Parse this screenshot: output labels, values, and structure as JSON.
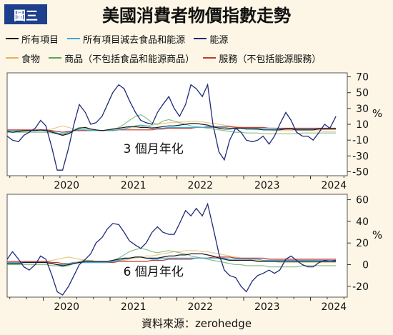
{
  "badge": "圖三",
  "title": "美國消費者物價指數走勢",
  "source": "資料來源：zerohedge",
  "legend": [
    {
      "label": "所有項目",
      "color": "#1a1a1a"
    },
    {
      "label": "所有項目減去食品和能源",
      "color": "#3aa8d8"
    },
    {
      "label": "能源",
      "color": "#1f2a7a"
    },
    {
      "label": "食物",
      "color": "#e0b35c"
    },
    {
      "label": "商品（不包括食品和能源商品）",
      "color": "#5aa35a"
    },
    {
      "label": "服務（不包括能源服務）",
      "color": "#c0392b"
    }
  ],
  "chart_data": [
    {
      "type": "line",
      "annotation": "3 個月年化",
      "ylabel": "%",
      "ylim": [
        -55,
        75
      ],
      "yticks": [
        70,
        50,
        30,
        10,
        -10,
        -30,
        -50
      ],
      "xticks": [
        "2020",
        "2021",
        "2022",
        "2023",
        "2024"
      ],
      "x": [
        2019.46,
        2019.54,
        2019.63,
        2019.71,
        2019.79,
        2019.88,
        2019.96,
        2020.04,
        2020.13,
        2020.21,
        2020.29,
        2020.38,
        2020.46,
        2020.54,
        2020.63,
        2020.71,
        2020.79,
        2020.88,
        2020.96,
        2021.04,
        2021.13,
        2021.21,
        2021.29,
        2021.38,
        2021.46,
        2021.54,
        2021.63,
        2021.71,
        2021.79,
        2021.88,
        2021.96,
        2022.04,
        2022.13,
        2022.21,
        2022.29,
        2022.38,
        2022.46,
        2022.54,
        2022.63,
        2022.71,
        2022.79,
        2022.88,
        2022.96,
        2023.04,
        2023.13,
        2023.21,
        2023.29,
        2023.38,
        2023.46,
        2023.54,
        2023.63,
        2023.71,
        2023.79,
        2023.88,
        2023.96,
        2024.04,
        2024.13,
        2024.21,
        2024.29,
        2024.38
      ],
      "series": [
        {
          "name": "所有項目",
          "values": [
            1,
            0,
            1,
            2,
            2,
            2,
            3,
            2,
            0,
            -2,
            -4,
            -2,
            2,
            5,
            6,
            4,
            3,
            2,
            3,
            4,
            5,
            6,
            7,
            7,
            6,
            6,
            5,
            6,
            7,
            8,
            8,
            9,
            10,
            11,
            11,
            10,
            9,
            7,
            5,
            4,
            4,
            5,
            5,
            4,
            4,
            4,
            3,
            3,
            3,
            3,
            4,
            4,
            3,
            3,
            3,
            3,
            4,
            4,
            4,
            4
          ]
        },
        {
          "name": "所有項目減去食品和能源",
          "values": [
            2,
            2,
            2,
            2,
            2,
            2,
            2,
            2,
            1,
            -1,
            -2,
            0,
            2,
            3,
            3,
            2,
            2,
            2,
            2,
            2,
            3,
            4,
            6,
            8,
            9,
            8,
            6,
            5,
            5,
            6,
            6,
            6,
            6,
            6,
            6,
            6,
            6,
            6,
            6,
            6,
            5,
            5,
            5,
            5,
            5,
            5,
            5,
            5,
            5,
            4,
            4,
            4,
            4,
            4,
            4,
            4,
            4,
            4,
            4,
            4
          ]
        },
        {
          "name": "能源",
          "values": [
            -5,
            -10,
            -12,
            -4,
            0,
            5,
            15,
            8,
            -20,
            -48,
            -48,
            -20,
            10,
            35,
            25,
            10,
            12,
            20,
            35,
            50,
            60,
            55,
            40,
            25,
            15,
            12,
            10,
            25,
            35,
            45,
            30,
            20,
            35,
            60,
            55,
            45,
            60,
            10,
            -25,
            -35,
            -10,
            5,
            0,
            -10,
            -12,
            -10,
            -5,
            -15,
            -5,
            10,
            25,
            15,
            0,
            -5,
            -5,
            -10,
            0,
            10,
            5,
            20
          ]
        },
        {
          "name": "食物",
          "values": [
            2,
            2,
            1,
            1,
            2,
            2,
            3,
            3,
            4,
            6,
            8,
            6,
            4,
            3,
            3,
            2,
            2,
            2,
            3,
            3,
            4,
            4,
            5,
            6,
            7,
            8,
            9,
            10,
            11,
            12,
            12,
            13,
            13,
            14,
            14,
            13,
            12,
            11,
            10,
            9,
            8,
            7,
            6,
            5,
            4,
            3,
            3,
            3,
            2,
            2,
            2,
            2,
            2,
            2,
            2,
            2,
            2,
            1,
            1,
            1
          ]
        },
        {
          "name": "商品（不包括食品和能源商品）",
          "values": [
            0,
            0,
            0,
            0,
            0,
            0,
            0,
            0,
            -1,
            -2,
            -3,
            -1,
            3,
            6,
            5,
            3,
            2,
            2,
            2,
            3,
            6,
            10,
            15,
            20,
            22,
            18,
            12,
            10,
            14,
            16,
            14,
            12,
            10,
            8,
            7,
            6,
            5,
            4,
            3,
            2,
            1,
            0,
            0,
            -1,
            -1,
            -1,
            -2,
            -2,
            -2,
            -2,
            -2,
            -2,
            -2,
            -1,
            -1,
            -1,
            -1,
            -1,
            -1,
            -1
          ]
        },
        {
          "name": "服務（不包括能源服務）",
          "values": [
            3,
            3,
            3,
            3,
            3,
            3,
            3,
            3,
            2,
            1,
            0,
            1,
            2,
            2,
            2,
            2,
            2,
            2,
            2,
            2,
            3,
            3,
            3,
            3,
            3,
            3,
            3,
            4,
            4,
            5,
            5,
            5,
            5,
            5,
            6,
            6,
            7,
            7,
            7,
            7,
            7,
            6,
            6,
            6,
            6,
            6,
            6,
            5,
            5,
            5,
            5,
            5,
            5,
            5,
            5,
            5,
            5,
            5,
            5,
            5
          ]
        }
      ]
    },
    {
      "type": "line",
      "annotation": "6 個月年化",
      "ylabel": "%",
      "ylim": [
        -30,
        65
      ],
      "yticks": [
        60,
        40,
        20,
        0,
        -20
      ],
      "xticks": [
        "2020",
        "2021",
        "2022",
        "2023",
        "2024"
      ],
      "x": [
        2019.46,
        2019.54,
        2019.63,
        2019.71,
        2019.79,
        2019.88,
        2019.96,
        2020.04,
        2020.13,
        2020.21,
        2020.29,
        2020.38,
        2020.46,
        2020.54,
        2020.63,
        2020.71,
        2020.79,
        2020.88,
        2020.96,
        2021.04,
        2021.13,
        2021.21,
        2021.29,
        2021.38,
        2021.46,
        2021.54,
        2021.63,
        2021.71,
        2021.79,
        2021.88,
        2021.96,
        2022.04,
        2022.13,
        2022.21,
        2022.29,
        2022.38,
        2022.46,
        2022.54,
        2022.63,
        2022.71,
        2022.79,
        2022.88,
        2022.96,
        2023.04,
        2023.13,
        2023.21,
        2023.29,
        2023.38,
        2023.46,
        2023.54,
        2023.63,
        2023.71,
        2023.79,
        2023.88,
        2023.96,
        2024.04,
        2024.13,
        2024.21,
        2024.29,
        2024.38
      ],
      "series": [
        {
          "name": "所有項目",
          "values": [
            1,
            1,
            1,
            2,
            2,
            2,
            2,
            2,
            1,
            0,
            -1,
            0,
            1,
            2,
            3,
            3,
            3,
            3,
            3,
            4,
            5,
            6,
            6,
            7,
            7,
            6,
            6,
            6,
            7,
            8,
            8,
            9,
            9,
            10,
            10,
            10,
            9,
            8,
            6,
            5,
            4,
            4,
            4,
            4,
            4,
            3,
            3,
            3,
            3,
            3,
            3,
            3,
            3,
            3,
            3,
            3,
            3,
            3,
            3,
            3
          ]
        },
        {
          "name": "所有項目減去食品和能源",
          "values": [
            2,
            2,
            2,
            2,
            2,
            2,
            2,
            2,
            1,
            0,
            0,
            1,
            2,
            2,
            2,
            2,
            2,
            2,
            2,
            3,
            4,
            5,
            6,
            7,
            7,
            6,
            5,
            5,
            6,
            6,
            6,
            6,
            6,
            6,
            6,
            6,
            6,
            6,
            6,
            6,
            5,
            5,
            5,
            5,
            5,
            5,
            4,
            4,
            4,
            4,
            4,
            4,
            4,
            4,
            4,
            4,
            4,
            4,
            4,
            4
          ]
        },
        {
          "name": "能源",
          "values": [
            5,
            12,
            5,
            -2,
            -5,
            0,
            8,
            5,
            -10,
            -25,
            -28,
            -20,
            -10,
            0,
            5,
            10,
            20,
            25,
            33,
            38,
            37,
            30,
            22,
            18,
            15,
            20,
            30,
            35,
            30,
            28,
            28,
            38,
            50,
            45,
            52,
            45,
            56,
            35,
            10,
            -5,
            -10,
            -12,
            -20,
            -25,
            -15,
            -10,
            -8,
            -5,
            -8,
            -5,
            5,
            8,
            4,
            0,
            -2,
            -2,
            2,
            4,
            3,
            4
          ]
        },
        {
          "name": "食物",
          "values": [
            1,
            1,
            1,
            2,
            2,
            2,
            2,
            3,
            4,
            5,
            6,
            7,
            6,
            5,
            4,
            3,
            3,
            3,
            3,
            3,
            4,
            4,
            5,
            6,
            7,
            8,
            8,
            9,
            10,
            11,
            12,
            12,
            13,
            13,
            13,
            12,
            12,
            11,
            10,
            9,
            8,
            7,
            6,
            5,
            4,
            4,
            3,
            3,
            3,
            2,
            2,
            2,
            2,
            2,
            2,
            2,
            2,
            2,
            2,
            2
          ]
        },
        {
          "name": "商品（不包括食品和能源商品）",
          "values": [
            0,
            0,
            0,
            0,
            0,
            0,
            0,
            0,
            -1,
            -1,
            -2,
            -1,
            1,
            3,
            4,
            4,
            3,
            3,
            3,
            4,
            6,
            9,
            12,
            14,
            15,
            14,
            12,
            11,
            12,
            13,
            12,
            11,
            10,
            8,
            7,
            6,
            5,
            4,
            3,
            2,
            1,
            0,
            0,
            -1,
            -1,
            -1,
            -1,
            -2,
            -2,
            -2,
            -2,
            -2,
            -2,
            -1,
            -1,
            -1,
            -1,
            -1,
            -1,
            -1
          ]
        },
        {
          "name": "服務（不包括能源服務）",
          "values": [
            3,
            3,
            3,
            3,
            3,
            3,
            3,
            3,
            2,
            2,
            1,
            1,
            2,
            2,
            2,
            2,
            2,
            2,
            2,
            2,
            3,
            3,
            3,
            3,
            3,
            3,
            4,
            4,
            4,
            5,
            5,
            5,
            5,
            5,
            6,
            6,
            6,
            7,
            7,
            7,
            7,
            6,
            6,
            6,
            6,
            6,
            6,
            5,
            5,
            5,
            5,
            5,
            5,
            5,
            5,
            5,
            5,
            5,
            5,
            5
          ]
        }
      ]
    }
  ]
}
